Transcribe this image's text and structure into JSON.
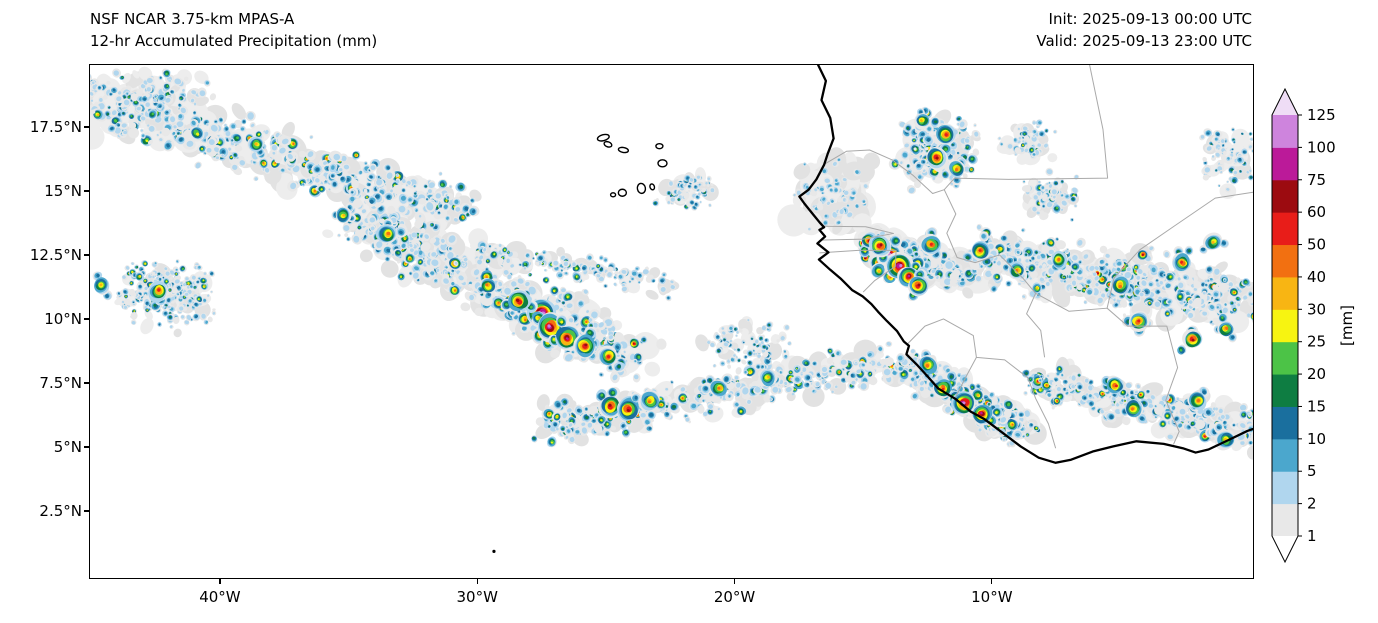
{
  "header": {
    "title_line1": "NSF NCAR 3.75-km MPAS-A",
    "title_line2": "12-hr Accumulated Precipitation (mm)",
    "init_label": "Init: 2025-09-13 00:00 UTC",
    "valid_label": "Valid: 2025-09-13 23:00 UTC"
  },
  "axes": {
    "lon_range": [
      -45.05,
      0.15
    ],
    "lat_range": [
      -0.12,
      19.92
    ],
    "x_ticks": [
      {
        "lon": -40,
        "label": "40°W"
      },
      {
        "lon": -30,
        "label": "30°W"
      },
      {
        "lon": -20,
        "label": "20°W"
      },
      {
        "lon": -10,
        "label": "10°W"
      }
    ],
    "y_ticks": [
      {
        "lat": 17.5,
        "label": "17.5°N"
      },
      {
        "lat": 15,
        "label": "15°N"
      },
      {
        "lat": 12.5,
        "label": "12.5°N"
      },
      {
        "lat": 10,
        "label": "10°N"
      },
      {
        "lat": 7.5,
        "label": "7.5°N"
      },
      {
        "lat": 5,
        "label": "5°N"
      },
      {
        "lat": 2.5,
        "label": "2.5°N"
      }
    ]
  },
  "colorbar": {
    "unit_label": "[mm]",
    "levels": [
      1,
      2,
      5,
      10,
      15,
      20,
      25,
      30,
      40,
      50,
      60,
      75,
      100,
      125
    ],
    "band_colors": [
      "#e8e8e8",
      "#b0d6ee",
      "#4ba7cd",
      "#1a6f9e",
      "#0e7d42",
      "#4cc347",
      "#f7f411",
      "#f8b513",
      "#f27011",
      "#e81d19",
      "#9c0b10",
      "#bb1a99",
      "#ce84dd"
    ],
    "under_color": "#ffffff",
    "over_color": "#efddf6"
  },
  "map": {
    "coast_color": "#000000",
    "border_color": "#a9a9a9",
    "haze_colors": [
      "#ededed",
      "#e2e2e2"
    ],
    "coastline": [
      [
        -16.75,
        19.92
      ],
      [
        -16.45,
        19.3
      ],
      [
        -16.62,
        18.55
      ],
      [
        -16.28,
        17.85
      ],
      [
        -16.15,
        17.05
      ],
      [
        -16.38,
        16.45
      ],
      [
        -16.52,
        16.02
      ],
      [
        -16.82,
        15.45
      ],
      [
        -17.12,
        15.05
      ],
      [
        -17.48,
        14.78
      ],
      [
        -17.28,
        14.5
      ],
      [
        -16.92,
        14.05
      ],
      [
        -16.7,
        13.78
      ],
      [
        -16.52,
        13.58
      ],
      [
        -16.7,
        13.48
      ],
      [
        -16.48,
        13.22
      ],
      [
        -16.78,
        12.95
      ],
      [
        -16.35,
        12.6
      ],
      [
        -16.72,
        12.32
      ],
      [
        -16.28,
        11.92
      ],
      [
        -15.88,
        11.58
      ],
      [
        -15.42,
        11.12
      ],
      [
        -15.02,
        10.88
      ],
      [
        -14.68,
        10.58
      ],
      [
        -14.42,
        10.28
      ],
      [
        -14.08,
        9.92
      ],
      [
        -13.68,
        9.52
      ],
      [
        -13.42,
        9.12
      ],
      [
        -13.22,
        8.95
      ],
      [
        -13.32,
        8.62
      ],
      [
        -12.92,
        8.22
      ],
      [
        -12.52,
        7.78
      ],
      [
        -12.08,
        7.28
      ],
      [
        -11.42,
        6.88
      ],
      [
        -10.82,
        6.38
      ],
      [
        -10.28,
        6.08
      ],
      [
        -9.62,
        5.58
      ],
      [
        -8.88,
        5.02
      ],
      [
        -8.18,
        4.58
      ],
      [
        -7.52,
        4.38
      ],
      [
        -6.92,
        4.5
      ],
      [
        -6.08,
        4.82
      ],
      [
        -5.28,
        5.02
      ],
      [
        -4.38,
        5.22
      ],
      [
        -3.32,
        5.12
      ],
      [
        -2.58,
        4.95
      ],
      [
        -2.08,
        4.78
      ],
      [
        -1.58,
        4.9
      ],
      [
        -0.78,
        5.28
      ],
      [
        -0.08,
        5.62
      ],
      [
        0.2,
        5.72
      ]
    ],
    "borders": [
      [
        [
          -16.5,
          16.05
        ],
        [
          -15.65,
          16.55
        ],
        [
          -14.75,
          16.6
        ],
        [
          -13.85,
          16.2
        ],
        [
          -13.05,
          15.6
        ],
        [
          -12.3,
          14.9
        ],
        [
          -11.85,
          15.05
        ],
        [
          -11.45,
          15.5
        ],
        [
          -9.35,
          15.45
        ],
        [
          -5.5,
          15.5
        ],
        [
          -5.68,
          17.4
        ],
        [
          -6.2,
          19.92
        ]
      ],
      [
        [
          -11.85,
          15.05
        ],
        [
          -11.4,
          14.1
        ],
        [
          -11.75,
          13.35
        ],
        [
          -11.35,
          12.4
        ],
        [
          -10.65,
          12.2
        ],
        [
          -9.7,
          12.5
        ],
        [
          -8.8,
          11.6
        ],
        [
          -8.3,
          11.0
        ],
        [
          -8.65,
          10.2
        ],
        [
          -8.1,
          9.55
        ],
        [
          -7.95,
          8.5
        ]
      ],
      [
        [
          -16.55,
          13.62
        ],
        [
          -14.9,
          13.6
        ],
        [
          -13.82,
          13.34
        ],
        [
          -15.0,
          13.12
        ],
        [
          -16.68,
          13.08
        ]
      ],
      [
        [
          -16.7,
          12.58
        ],
        [
          -15.2,
          12.68
        ],
        [
          -13.72,
          12.68
        ],
        [
          -13.75,
          12.05
        ],
        [
          -14.55,
          11.5
        ],
        [
          -15.0,
          11.05
        ]
      ],
      [
        [
          -13.28,
          9.02
        ],
        [
          -12.6,
          9.72
        ],
        [
          -11.88,
          10.0
        ],
        [
          -10.72,
          9.35
        ],
        [
          -10.6,
          8.5
        ],
        [
          -9.5,
          8.4
        ],
        [
          -8.6,
          7.7
        ],
        [
          -8.3,
          6.9
        ],
        [
          -7.8,
          5.9
        ],
        [
          -7.52,
          4.95
        ]
      ],
      [
        [
          -10.6,
          8.5
        ],
        [
          -11.0,
          7.75
        ],
        [
          -11.42,
          6.92
        ]
      ],
      [
        [
          -3.2,
          9.72
        ],
        [
          -2.78,
          8.1
        ],
        [
          -3.24,
          6.82
        ],
        [
          -2.72,
          5.6
        ],
        [
          -2.94,
          5.1
        ]
      ],
      [
        [
          -8.3,
          11.0
        ],
        [
          -7.0,
          10.3
        ],
        [
          -5.52,
          10.42
        ],
        [
          -4.72,
          9.72
        ],
        [
          -3.2,
          9.72
        ]
      ],
      [
        [
          -5.52,
          10.42
        ],
        [
          -5.25,
          11.6
        ],
        [
          -4.25,
          12.7
        ],
        [
          -2.92,
          13.62
        ],
        [
          -1.32,
          14.72
        ],
        [
          0.15,
          14.95
        ]
      ]
    ],
    "islands": [
      [
        -25.1,
        17.08,
        6,
        3,
        -15
      ],
      [
        -24.92,
        16.82,
        4,
        2.5,
        20
      ],
      [
        -24.32,
        16.6,
        5,
        2.5,
        10
      ],
      [
        -22.92,
        16.75,
        3.5,
        2.5,
        0
      ],
      [
        -22.8,
        16.08,
        4.5,
        3.5,
        0
      ],
      [
        -23.62,
        15.1,
        5,
        4,
        80
      ],
      [
        -24.36,
        14.93,
        4,
        3.5,
        0
      ],
      [
        -23.2,
        15.16,
        3,
        2.2,
        70
      ],
      [
        -24.72,
        14.85,
        2.5,
        2,
        0
      ]
    ],
    "islet": [
      -29.35,
      0.92
    ],
    "precip_regions": [
      {
        "name": "nw-band",
        "kind": "band",
        "p1": [
          -45.5,
          18.6
        ],
        "p2": [
          -30.5,
          14.2
        ],
        "width": 2.3,
        "n": 430,
        "vmax": 40,
        "rmin": 1.5,
        "rmax": 5.5,
        "hazeN": 170,
        "hazeR": 13
      },
      {
        "name": "nw-top",
        "kind": "blob",
        "c": [
          -42.5,
          18.8
        ],
        "s": [
          2.5,
          1.0
        ],
        "n": 80,
        "vmax": 20,
        "rmin": 1.5,
        "rmax": 4.5,
        "hazeN": 30,
        "hazeR": 10
      },
      {
        "name": "west-scatter",
        "kind": "blob",
        "c": [
          -42.3,
          11.0
        ],
        "s": [
          2.3,
          1.4
        ],
        "n": 240,
        "vmax": 30,
        "rmin": 1.2,
        "rmax": 3.6,
        "hazeN": 40,
        "hazeR": 8
      },
      {
        "name": "central-band",
        "kind": "band",
        "p1": [
          -34.8,
          13.9
        ],
        "p2": [
          -23.8,
          8.4
        ],
        "width": 2.6,
        "n": 460,
        "vmax": 60,
        "rmin": 1.5,
        "rmax": 5.5,
        "hazeN": 150,
        "hazeR": 12
      },
      {
        "name": "central-arc",
        "kind": "band",
        "p1": [
          -30.0,
          12.6
        ],
        "p2": [
          -22.6,
          11.4
        ],
        "width": 1.4,
        "n": 120,
        "vmax": 25,
        "rmin": 1.3,
        "rmax": 4,
        "hazeN": 40,
        "hazeR": 9
      },
      {
        "name": "south-band",
        "kind": "band",
        "p1": [
          -27.4,
          5.8
        ],
        "p2": [
          -13.9,
          8.3
        ],
        "width": 1.7,
        "n": 380,
        "vmax": 50,
        "rmin": 1.4,
        "rmax": 5,
        "hazeN": 110,
        "hazeR": 10
      },
      {
        "name": "senegal-north",
        "kind": "blob",
        "c": [
          -12.1,
          16.6
        ],
        "s": [
          1.6,
          1.5
        ],
        "n": 170,
        "vmax": 60,
        "rmin": 1.5,
        "rmax": 5,
        "hazeN": 60,
        "hazeR": 11
      },
      {
        "name": "mauritania-east",
        "kind": "blob",
        "c": [
          -8.6,
          16.9
        ],
        "s": [
          1.0,
          0.8
        ],
        "n": 50,
        "vmax": 30,
        "rmin": 1.3,
        "rmax": 4,
        "hazeN": 18,
        "hazeR": 9
      },
      {
        "name": "mali-west",
        "kind": "blob",
        "c": [
          -7.8,
          14.8
        ],
        "s": [
          1.2,
          0.9
        ],
        "n": 60,
        "vmax": 25,
        "rmin": 1.3,
        "rmax": 4,
        "hazeN": 20,
        "hazeR": 9
      },
      {
        "name": "senegal-coast-haze",
        "kind": "blob",
        "c": [
          -16.2,
          14.9
        ],
        "s": [
          1.7,
          1.5
        ],
        "n": 60,
        "vmax": 8,
        "rmin": 1.5,
        "rmax": 4,
        "hazeN": 90,
        "hazeR": 13
      },
      {
        "name": "guinea-cluster",
        "kind": "band",
        "p1": [
          -14.8,
          12.9
        ],
        "p2": [
          -11.2,
          11.7
        ],
        "width": 1.4,
        "n": 280,
        "vmax": 75,
        "rmin": 1.6,
        "rmax": 6,
        "hazeN": 120,
        "hazeR": 13
      },
      {
        "name": "inland-east",
        "kind": "band",
        "p1": [
          -10.8,
          12.4
        ],
        "p2": [
          0.3,
          10.6
        ],
        "width": 2.6,
        "n": 520,
        "vmax": 60,
        "rmin": 1.4,
        "rmax": 5,
        "hazeN": 170,
        "hazeR": 12
      },
      {
        "name": "inland-north-east",
        "kind": "blob",
        "c": [
          -0.8,
          16.4
        ],
        "s": [
          1.2,
          1.4
        ],
        "n": 70,
        "vmax": 15,
        "rmin": 1.3,
        "rmax": 4,
        "hazeN": 25,
        "hazeR": 9
      },
      {
        "name": "sl-liberia-coast",
        "kind": "band",
        "p1": [
          -13.4,
          8.2
        ],
        "p2": [
          -8.8,
          5.6
        ],
        "width": 1.6,
        "n": 300,
        "vmax": 60,
        "rmin": 1.5,
        "rmax": 5.5,
        "hazeN": 90,
        "hazeR": 11
      },
      {
        "name": "gulf-east",
        "kind": "band",
        "p1": [
          -8.2,
          7.6
        ],
        "p2": [
          0.3,
          5.6
        ],
        "width": 1.7,
        "n": 280,
        "vmax": 50,
        "rmin": 1.4,
        "rmax": 5,
        "hazeN": 90,
        "hazeR": 10
      },
      {
        "name": "capeverde-east",
        "kind": "blob",
        "c": [
          -21.8,
          15.0
        ],
        "s": [
          1.3,
          0.9
        ],
        "n": 70,
        "vmax": 20,
        "rmin": 1.2,
        "rmax": 3.5,
        "hazeN": 20,
        "hazeR": 8
      },
      {
        "name": "mid-scatter",
        "kind": "blob",
        "c": [
          -19.5,
          8.9
        ],
        "s": [
          2.0,
          1.2
        ],
        "n": 80,
        "vmax": 15,
        "rmin": 1.2,
        "rmax": 3.2,
        "hazeN": 25,
        "hazeR": 8
      }
    ],
    "hotspots": [
      [
        -42.4,
        11.1,
        50
      ],
      [
        -44.6,
        11.3,
        30
      ],
      [
        -27.5,
        10.2,
        125
      ],
      [
        -27.15,
        9.7,
        100
      ],
      [
        -26.5,
        9.25,
        75
      ],
      [
        -28.4,
        10.7,
        60
      ],
      [
        -25.8,
        8.95,
        60
      ],
      [
        -29.6,
        11.3,
        40
      ],
      [
        -24.9,
        8.55,
        50
      ],
      [
        -33.5,
        13.3,
        40
      ],
      [
        -24.8,
        6.6,
        60
      ],
      [
        -24.15,
        6.45,
        60
      ],
      [
        -23.3,
        6.8,
        40
      ],
      [
        -20.6,
        7.3,
        40
      ],
      [
        -18.7,
        7.7,
        30
      ],
      [
        -11.8,
        17.2,
        50
      ],
      [
        -12.15,
        16.3,
        60
      ],
      [
        -11.35,
        15.85,
        40
      ],
      [
        -12.7,
        17.75,
        30
      ],
      [
        -14.0,
        12.45,
        125
      ],
      [
        -13.6,
        12.05,
        100
      ],
      [
        -13.25,
        11.65,
        75
      ],
      [
        -14.35,
        12.85,
        60
      ],
      [
        -12.85,
        11.3,
        60
      ],
      [
        -12.35,
        12.9,
        50
      ],
      [
        -10.45,
        12.65,
        50
      ],
      [
        -9.0,
        11.9,
        40
      ],
      [
        -7.4,
        12.3,
        40
      ],
      [
        -5.0,
        11.3,
        40
      ],
      [
        -2.6,
        12.2,
        50
      ],
      [
        -1.4,
        13.0,
        30
      ],
      [
        -4.3,
        9.9,
        50
      ],
      [
        -2.2,
        9.2,
        60
      ],
      [
        -0.9,
        9.6,
        40
      ],
      [
        -11.1,
        6.7,
        100
      ],
      [
        -10.4,
        6.3,
        75
      ],
      [
        -11.9,
        7.3,
        50
      ],
      [
        -12.5,
        8.2,
        40
      ],
      [
        -5.2,
        7.4,
        50
      ],
      [
        -4.5,
        6.5,
        40
      ],
      [
        -2.0,
        6.8,
        40
      ],
      [
        -0.9,
        5.3,
        30
      ],
      [
        -35.2,
        14.05,
        30
      ],
      [
        -38.6,
        16.8,
        30
      ],
      [
        -40.9,
        17.25,
        25
      ]
    ]
  }
}
